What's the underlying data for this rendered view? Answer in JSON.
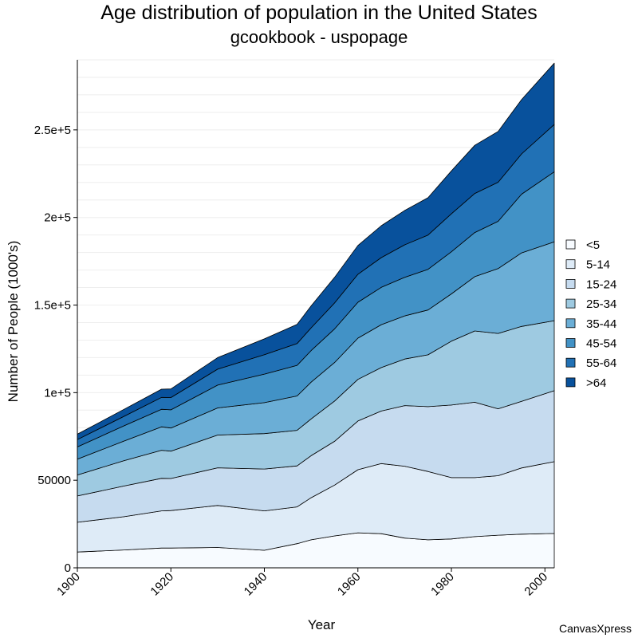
{
  "chart_data": {
    "type": "area",
    "stacked": true,
    "title": "Age distribution of population in the United States",
    "subtitle": "gcookbook - uspopage",
    "xlabel": "Year",
    "ylabel": "Number of People (1000's)",
    "xlim": [
      1900,
      2002
    ],
    "ylim": [
      0,
      290000
    ],
    "x_ticks": [
      1900,
      1920,
      1940,
      1960,
      1980,
      2000
    ],
    "y_ticks": [
      0,
      50000,
      100000,
      150000,
      200000,
      250000
    ],
    "y_tick_labels": [
      "0",
      "50000",
      "1e+5",
      "1.5e+5",
      "2e+5",
      "2.5e+5"
    ],
    "legend_position": "right",
    "x": [
      1900,
      1910,
      1918,
      1920,
      1930,
      1940,
      1947,
      1950,
      1955,
      1960,
      1965,
      1970,
      1975,
      1980,
      1985,
      1990,
      1995,
      2002
    ],
    "series": [
      {
        "name": "<5",
        "color": "#f7fbff",
        "values": [
          9000,
          10200,
          11300,
          11300,
          11600,
          10000,
          13800,
          16000,
          18200,
          20000,
          19500,
          17000,
          16000,
          16500,
          17800,
          18600,
          19200,
          19600
        ]
      },
      {
        "name": "5-14",
        "color": "#deebf7",
        "values": [
          17000,
          19000,
          21200,
          21400,
          24000,
          22500,
          21000,
          24000,
          29000,
          36000,
          40000,
          41000,
          39000,
          35000,
          33700,
          34000,
          37800,
          41000
        ]
      },
      {
        "name": "15-24",
        "color": "#c6dbef",
        "values": [
          15000,
          17500,
          18600,
          18300,
          21500,
          23900,
          23400,
          24000,
          25000,
          27800,
          30000,
          34600,
          37000,
          41400,
          43000,
          38200,
          38000,
          40500
        ]
      },
      {
        "name": "25-34",
        "color": "#9ecae1",
        "values": [
          12000,
          14500,
          16000,
          15600,
          18700,
          20200,
          20300,
          21000,
          23000,
          23800,
          24800,
          26600,
          29600,
          36500,
          40700,
          43000,
          42800,
          40000
        ]
      },
      {
        "name": "35-44",
        "color": "#6baed6",
        "values": [
          9000,
          11200,
          13400,
          13200,
          15500,
          17700,
          19600,
          21000,
          22000,
          23500,
          24500,
          24600,
          25600,
          27000,
          31000,
          37000,
          42000,
          45000
        ]
      },
      {
        "name": "45-54",
        "color": "#4292c6",
        "values": [
          7000,
          8700,
          10000,
          10400,
          13000,
          16300,
          17500,
          18000,
          19200,
          20500,
          21300,
          22000,
          23200,
          24000,
          25200,
          27000,
          33500,
          40000
        ]
      },
      {
        "name": "55-64",
        "color": "#2171b5",
        "values": [
          4200,
          5400,
          6800,
          7000,
          9100,
          11100,
          12400,
          13000,
          14800,
          16000,
          17000,
          18600,
          19600,
          21700,
          22300,
          22300,
          23000,
          27000
        ]
      },
      {
        "name": ">64",
        "color": "#08519c",
        "values": [
          3100,
          4000,
          4700,
          4900,
          6600,
          9000,
          11000,
          12500,
          14600,
          16400,
          18200,
          19600,
          21300,
          24500,
          27500,
          29000,
          31000,
          35000
        ]
      }
    ]
  },
  "credit": "CanvasXpress"
}
